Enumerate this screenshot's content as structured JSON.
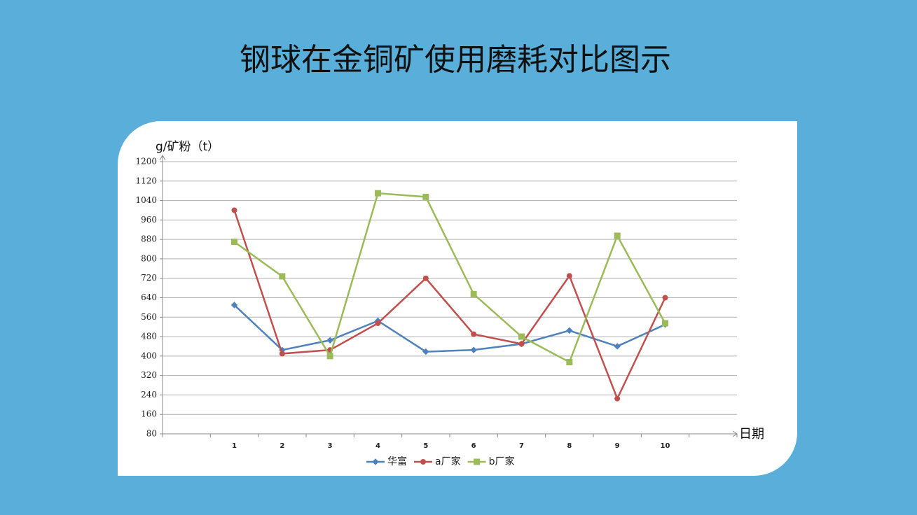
{
  "chart_data": {
    "type": "line",
    "title": "钢球在金铜矿使用磨耗对比图示",
    "y_label": "g/矿粉（t）",
    "x_label": "日期",
    "categories": [
      "1",
      "2",
      "3",
      "4",
      "5",
      "6",
      "7",
      "8",
      "9",
      "10"
    ],
    "series": [
      {
        "name": "华富",
        "color": "#4f81bd",
        "marker": "diamond",
        "values": [
          610,
          425,
          465,
          545,
          418,
          425,
          450,
          505,
          440,
          530
        ]
      },
      {
        "name": "a厂家",
        "color": "#c0504d",
        "marker": "circle",
        "values": [
          1000,
          410,
          425,
          535,
          720,
          490,
          450,
          730,
          225,
          640
        ]
      },
      {
        "name": "b厂家",
        "color": "#9bbb59",
        "marker": "square",
        "values": [
          870,
          728,
          400,
          1070,
          1055,
          655,
          480,
          375,
          895,
          535
        ]
      }
    ],
    "ylim": [
      80,
      1200
    ],
    "yticks": [
      80,
      160,
      240,
      320,
      400,
      480,
      560,
      640,
      720,
      800,
      880,
      960,
      1040,
      1120,
      1200
    ],
    "grid": true,
    "legend": "bottom"
  }
}
